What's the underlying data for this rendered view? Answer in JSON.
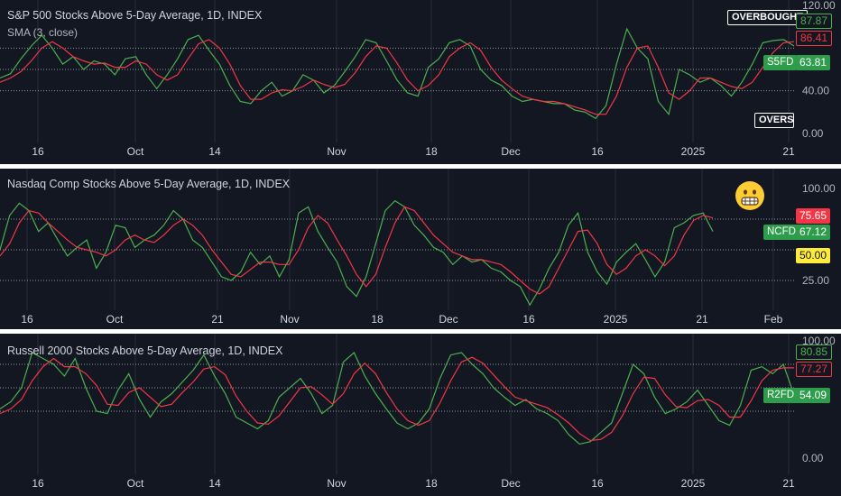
{
  "colors": {
    "price": "#4caf50",
    "sma": "#f23645",
    "bg": "#131722",
    "grid": "#2a2e39",
    "dotted": "#b2b5be"
  },
  "x_axis_labels": [
    "16",
    "Oct",
    "14",
    "Nov",
    "18",
    "Dec",
    "16",
    "2025",
    "21"
  ],
  "x_axis_labels_pane2": [
    "16",
    "Oct",
    "21",
    "Nov",
    "18",
    "Dec",
    "16",
    "2025",
    "21",
    "Feb"
  ],
  "panes": [
    {
      "title": "S&P 500 Stocks Above 5-Day Average, 1D, INDEX",
      "subtitle": "SMA (3, close)",
      "ticker": "S5FD",
      "y_ticks": [
        "120.00",
        "40.00",
        "0.00"
      ],
      "badges": {
        "overbought": "OVERBOUGHT",
        "oversold": "OVERSOLD",
        "last": "87.87",
        "sma": "86.41",
        "value": "63.81"
      }
    },
    {
      "title": "Nasdaq Comp Stocks Above 5-Day Average, 1D, INDEX",
      "ticker": "NCFD",
      "y_ticks": [
        "100.00",
        "25.00"
      ],
      "badges": {
        "sma": "75.65",
        "value": "67.12",
        "mid": "50.00"
      },
      "emoji": "grimacing-face-icon"
    },
    {
      "title": "Russell 2000 Stocks Above 5-Day Average, 1D, INDEX",
      "ticker": "R2FD",
      "y_ticks": [
        "100.00",
        "0.00"
      ],
      "badges": {
        "last": "80.85",
        "sma": "77.27",
        "value": "54.09"
      }
    }
  ],
  "chart_data": [
    {
      "type": "line",
      "title": "S&P 500 Stocks Above 5-Day Average, 1D, INDEX",
      "ylim": [
        0,
        120
      ],
      "levels": [
        80,
        60,
        40
      ],
      "series": [
        {
          "name": "S5FD",
          "values": [
            52,
            56,
            70,
            82,
            92,
            80,
            65,
            72,
            60,
            68,
            65,
            55,
            70,
            72,
            55,
            42,
            55,
            70,
            88,
            92,
            78,
            65,
            45,
            30,
            28,
            40,
            48,
            35,
            40,
            55,
            50,
            38,
            45,
            58,
            72,
            88,
            85,
            68,
            50,
            38,
            35,
            62,
            70,
            85,
            88,
            82,
            60,
            50,
            45,
            35,
            30,
            32,
            30,
            28,
            28,
            22,
            20,
            14,
            26,
            65,
            98,
            80,
            70,
            30,
            18,
            60,
            55,
            48,
            52,
            45,
            35,
            48,
            65,
            85,
            87,
            88,
            82
          ]
        },
        {
          "name": "SMA (3, close)",
          "values": [
            48,
            52,
            58,
            68,
            80,
            86,
            80,
            72,
            68,
            65,
            66,
            62,
            62,
            68,
            65,
            55,
            50,
            55,
            70,
            84,
            88,
            80,
            65,
            45,
            32,
            32,
            38,
            41,
            40,
            44,
            50,
            46,
            43,
            46,
            57,
            72,
            82,
            80,
            66,
            50,
            40,
            45,
            55,
            72,
            80,
            85,
            78,
            62,
            50,
            42,
            35,
            32,
            30,
            30,
            28,
            25,
            22,
            18,
            18,
            35,
            62,
            80,
            82,
            62,
            38,
            32,
            40,
            52,
            52,
            48,
            44,
            42,
            48,
            62,
            76,
            85,
            86
          ]
        }
      ]
    },
    {
      "type": "line",
      "title": "Nasdaq Comp Stocks Above 5-Day Average, 1D, INDEX",
      "ylim": [
        0,
        100
      ],
      "levels": [
        75,
        50,
        25
      ],
      "series": [
        {
          "name": "NCFD",
          "values": [
            50,
            78,
            88,
            82,
            65,
            72,
            58,
            45,
            52,
            58,
            35,
            48,
            70,
            68,
            52,
            58,
            62,
            70,
            82,
            75,
            58,
            52,
            40,
            28,
            25,
            32,
            48,
            38,
            45,
            28,
            42,
            80,
            85,
            65,
            52,
            40,
            20,
            12,
            28,
            55,
            82,
            90,
            85,
            70,
            62,
            52,
            48,
            38,
            45,
            40,
            42,
            35,
            32,
            25,
            20,
            5,
            18,
            35,
            48,
            70,
            80,
            48,
            32,
            22,
            40,
            48,
            55,
            42,
            28,
            40,
            68,
            72,
            78,
            80,
            65
          ]
        },
        {
          "name": "SMA (3, close)",
          "values": [
            45,
            55,
            72,
            82,
            80,
            72,
            65,
            58,
            52,
            50,
            48,
            45,
            50,
            58,
            62,
            58,
            56,
            62,
            70,
            75,
            70,
            62,
            50,
            40,
            30,
            28,
            34,
            40,
            40,
            38,
            38,
            50,
            68,
            78,
            72,
            58,
            45,
            30,
            20,
            30,
            52,
            72,
            85,
            82,
            72,
            62,
            55,
            48,
            45,
            42,
            42,
            40,
            38,
            32,
            25,
            18,
            14,
            20,
            35,
            50,
            65,
            66,
            55,
            38,
            30,
            35,
            45,
            50,
            45,
            37,
            45,
            62,
            74,
            78,
            76
          ]
        }
      ]
    },
    {
      "type": "line",
      "title": "Russell 2000 Stocks Above 5-Day Average, 1D, INDEX",
      "ylim": [
        0,
        100
      ],
      "levels": [
        80,
        60,
        40
      ],
      "series": [
        {
          "name": "R2FD",
          "values": [
            42,
            48,
            60,
            90,
            85,
            80,
            70,
            85,
            60,
            40,
            38,
            58,
            72,
            50,
            35,
            48,
            55,
            65,
            75,
            88,
            70,
            55,
            35,
            30,
            25,
            32,
            52,
            60,
            68,
            55,
            38,
            45,
            82,
            90,
            70,
            55,
            42,
            30,
            25,
            30,
            42,
            68,
            88,
            90,
            80,
            72,
            60,
            52,
            45,
            50,
            42,
            38,
            32,
            20,
            12,
            14,
            22,
            30,
            55,
            80,
            72,
            52,
            38,
            42,
            48,
            58,
            45,
            32,
            28,
            45,
            75,
            78,
            72,
            80,
            54
          ]
        },
        {
          "name": "SMA (3, close)",
          "values": [
            38,
            42,
            50,
            66,
            78,
            85,
            78,
            78,
            72,
            62,
            46,
            45,
            56,
            60,
            52,
            44,
            46,
            56,
            65,
            76,
            78,
            71,
            53,
            40,
            30,
            29,
            36,
            48,
            60,
            61,
            54,
            46,
            55,
            72,
            81,
            72,
            56,
            42,
            32,
            28,
            32,
            47,
            66,
            82,
            86,
            81,
            71,
            61,
            52,
            49,
            46,
            43,
            37,
            30,
            21,
            15,
            16,
            22,
            36,
            55,
            69,
            68,
            54,
            44,
            43,
            49,
            50,
            45,
            35,
            35,
            49,
            66,
            75,
            77,
            77
          ]
        }
      ]
    }
  ]
}
